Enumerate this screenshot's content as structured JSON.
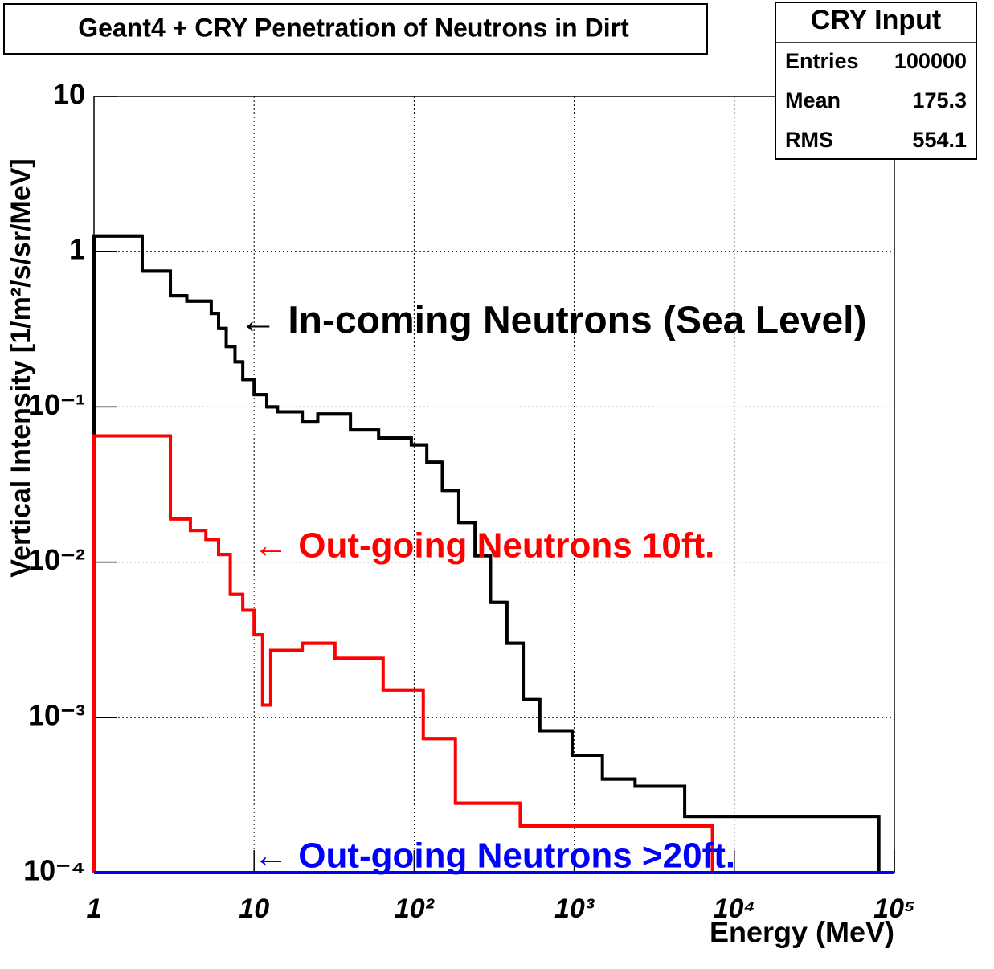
{
  "chart_data": {
    "type": "histogram",
    "title": "Geant4 + CRY Penetration of Neutrons in Dirt",
    "x_label": "Energy (MeV)",
    "y_label": "Vertical Intensity [1/m²/s/sr/MeV]",
    "xscale": "log",
    "yscale": "log",
    "grid": true,
    "xlim": [
      1,
      100000
    ],
    "ylim": [
      0.0001,
      10
    ],
    "xticks": [
      1,
      10,
      {
        "value": 100,
        "label": "10²"
      },
      {
        "value": 1000,
        "label": "10³"
      },
      {
        "value": 10000,
        "label": "10⁴"
      },
      {
        "value": 100000,
        "label": "10⁵"
      }
    ],
    "yticks": [
      {
        "value": 0.0001,
        "label": "10⁻⁴"
      },
      {
        "value": 0.001,
        "label": "10⁻³"
      },
      {
        "value": 0.01,
        "label": "10⁻²"
      },
      {
        "value": 0.1,
        "label": "10⁻¹"
      },
      1,
      10
    ],
    "series": [
      {
        "name": "In-coming Neutrons (Sea Level)",
        "label": "← In-coming Neutrons (Sea Level)",
        "color": "#000000",
        "bins": [
          1,
          2,
          3,
          3.8,
          5.4,
          6,
          6.7,
          7.6,
          8.5,
          10,
          12,
          14,
          20,
          25,
          40,
          60,
          96,
          120,
          150,
          190,
          240,
          300,
          380,
          480,
          610,
          970,
          1500,
          2400,
          4900,
          19500,
          80000
        ],
        "values": [
          1.26,
          0.75,
          0.52,
          0.48,
          0.4,
          0.32,
          0.245,
          0.195,
          0.15,
          0.12,
          0.1,
          0.093,
          0.08,
          0.09,
          0.071,
          0.063,
          0.057,
          0.044,
          0.029,
          0.018,
          0.011,
          0.0055,
          0.003,
          0.0013,
          0.00082,
          0.00057,
          0.0004,
          0.00036,
          0.00023,
          0.00023
        ]
      },
      {
        "name": "Out-going Neutrons 10ft.",
        "label": "← Out-going Neutrons 10ft.",
        "color": "#ff0000",
        "bins": [
          1,
          3,
          4,
          5,
          6,
          7.1,
          8.5,
          10,
          11.3,
          12.7,
          20,
          32,
          64,
          114,
          181,
          460,
          7300
        ],
        "values": [
          0.065,
          0.019,
          0.016,
          0.014,
          0.0112,
          0.0062,
          0.0049,
          0.0034,
          0.0012,
          0.0027,
          0.003,
          0.0024,
          0.0015,
          0.00073,
          0.00028,
          0.0002
        ]
      },
      {
        "name": "Out-going Neutrons >20ft.",
        "label": "← Out-going Neutrons >20ft.",
        "color": "#0000ff",
        "bins": [
          1,
          100000
        ],
        "values": [
          0.0001
        ]
      }
    ],
    "stats": {
      "title": "CRY Input",
      "rows": [
        [
          "Entries",
          "100000"
        ],
        [
          "Mean",
          "175.3"
        ],
        [
          "RMS",
          "554.1"
        ]
      ]
    }
  }
}
